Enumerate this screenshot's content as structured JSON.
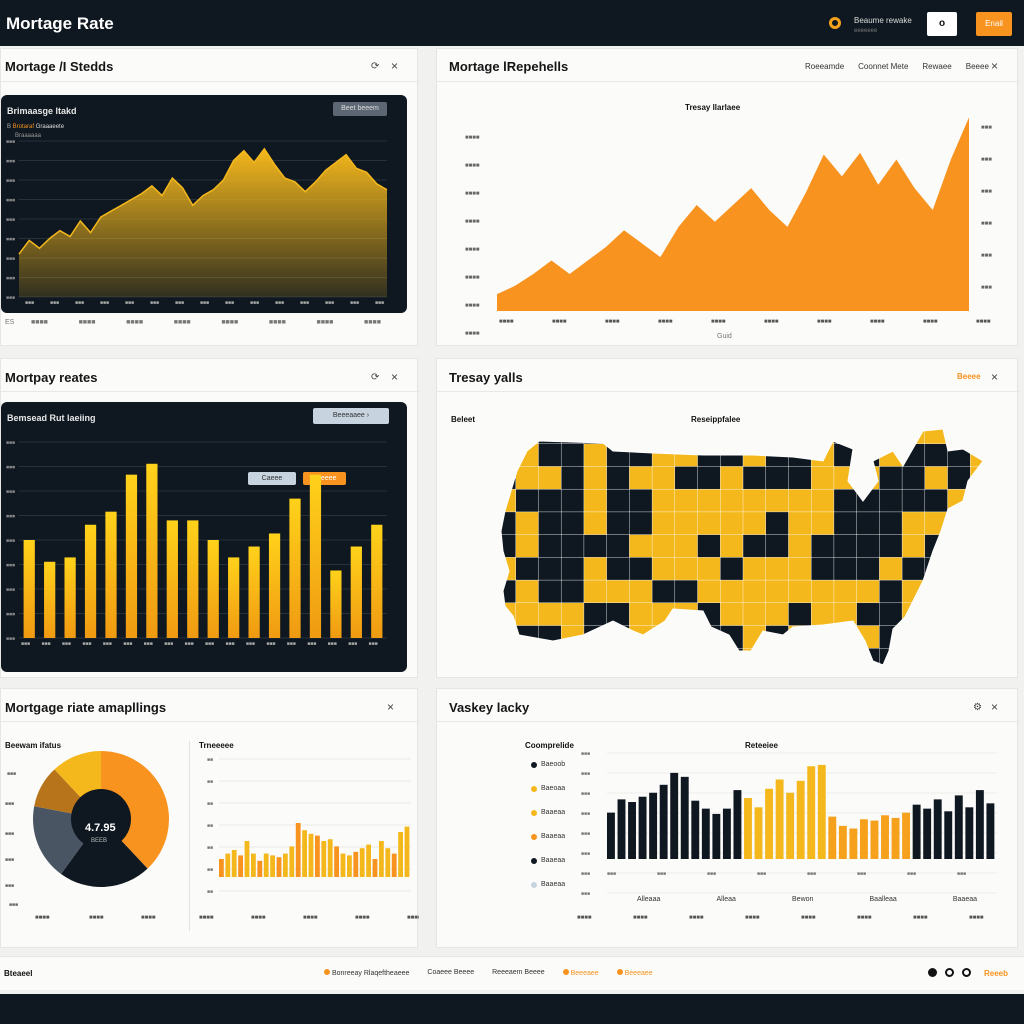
{
  "header": {
    "title": "Mortage Rate",
    "info_text": "Beaume rewake",
    "info_sub": "eeeeeee",
    "search_value": "o",
    "action_label": "Enail"
  },
  "colors": {
    "accent": "#f7931e",
    "gold": "#f5b81c",
    "dark": "#0f1820",
    "slate": "#4a5563"
  },
  "panels": {
    "p1": {
      "title": "Mortage /I Stedds",
      "inner_title": "Brimaasge ltakd",
      "button": "Beet beeem",
      "legend_a": "Brotaraf",
      "legend_b": "Graaaeete",
      "legend_c": "Braaaaaa",
      "x_label_left": "ES"
    },
    "p2": {
      "title": "Mortage lRepehells",
      "tabs": [
        "Roeeamde",
        "Coonnet Mete",
        "Rewaee",
        "Beeee"
      ],
      "chart_title": "Tresay llarlaee",
      "x_axis_label": "Guid"
    },
    "p3": {
      "title": "Mortpay reates",
      "inner_title": "Bemsead Rut laeiing",
      "dropdown": "Beeeaaee",
      "tag_a": "Caeee",
      "tag_b": "Beeeee"
    },
    "p4": {
      "title": "Tresay yalls",
      "link": "Beeee",
      "left_label": "Beleet",
      "map_title": "Reseippfalee"
    },
    "p5": {
      "title": "Mortgage riate amapllings",
      "pie_label": "Beewam ifatus",
      "center_value": "4.7.95",
      "center_sub": "BEEB",
      "mini_title": "Trneeeee"
    },
    "p6": {
      "title": "Vaskey lacky",
      "legend_title": "Coomprelide",
      "legend": [
        "Baeoob",
        "Baeoaa",
        "Baaeaa",
        "Baaeaa",
        "Baaeaa",
        "Baaeaa"
      ],
      "chart_title": "Reteeiee",
      "x_cats": [
        "Alleaaa",
        "Alleaa",
        "Bewon",
        "Baalleaa",
        "Baaeaa"
      ]
    }
  },
  "footer": {
    "left": "Bteaeel",
    "items": [
      "Bonreeay Rlaqeftheaeee",
      "Coaeee Beeee",
      "Reeeaem Beeee",
      "Beeeaee",
      "Beeeaee"
    ],
    "action": "Reeeb"
  },
  "chart_data": [
    {
      "type": "area",
      "title": "",
      "values": [
        2.2,
        2.9,
        2.5,
        3.0,
        3.4,
        3.1,
        3.9,
        3.3,
        4.1,
        4.4,
        4.7,
        5.0,
        5.3,
        5.7,
        5.2,
        6.1,
        5.6,
        4.7,
        5.2,
        5.5,
        6.0,
        7.0,
        7.5,
        6.9,
        7.6,
        6.8,
        6.1,
        5.9,
        5.4,
        5.9,
        6.5,
        6.9,
        7.3,
        6.6,
        6.4,
        5.8,
        5.5
      ]
    },
    {
      "type": "area",
      "title": "Tresay llarlaee",
      "values": [
        1.0,
        1.5,
        2.2,
        3.0,
        2.2,
        3.0,
        3.8,
        4.8,
        4.0,
        3.2,
        5.0,
        6.3,
        5.3,
        6.3,
        7.3,
        6.0,
        5.0,
        7.0,
        9.3,
        8.0,
        9.4,
        7.5,
        9.0,
        7.3,
        6.0,
        9.0,
        11.5
      ]
    },
    {
      "type": "bar",
      "title": "",
      "values": [
        4.5,
        3.5,
        3.7,
        5.2,
        5.8,
        7.5,
        8.0,
        5.4,
        5.4,
        4.5,
        3.7,
        4.2,
        4.8,
        6.4,
        7.5,
        3.1,
        4.2,
        5.2
      ]
    },
    {
      "type": "pie",
      "title": "",
      "values": [
        38,
        22,
        18,
        10,
        12
      ]
    },
    {
      "type": "bar",
      "title": "Trneeeee",
      "values": [
        1.0,
        1.3,
        1.5,
        1.2,
        2.0,
        1.3,
        0.9,
        1.3,
        1.2,
        1.1,
        1.3,
        1.7,
        3.0,
        2.6,
        2.4,
        2.3,
        2.0,
        2.1,
        1.7,
        1.3,
        1.2,
        1.4,
        1.6,
        1.8,
        1.0,
        2.0,
        1.6,
        1.3,
        2.5,
        2.8
      ]
    },
    {
      "type": "bar",
      "title": "Reteeiee",
      "values": [
        3.5,
        4.5,
        4.3,
        4.7,
        5.0,
        5.6,
        6.5,
        6.2,
        4.4,
        3.8,
        3.4,
        3.8,
        5.2,
        4.6,
        3.9,
        5.3,
        6.0,
        5.0,
        5.9,
        7.0,
        7.1,
        3.2,
        2.5,
        2.3,
        3.0,
        2.9,
        3.3,
        3.1,
        3.5,
        4.1,
        3.8,
        4.5,
        3.6,
        4.8,
        3.9,
        5.2,
        4.2
      ]
    }
  ]
}
